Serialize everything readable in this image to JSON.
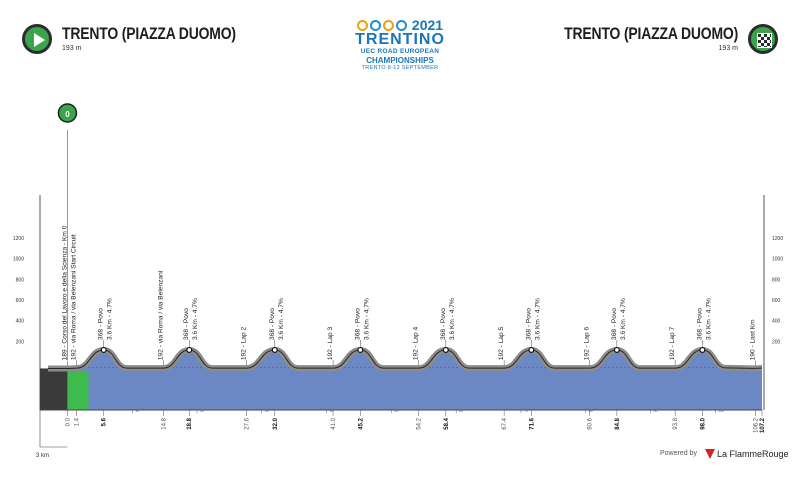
{
  "header": {
    "start_title": "TRENTO (PIAZZA DUOMO)",
    "start_altitude": "193 m",
    "finish_title": "TRENTO (PIAZZA DUOMO)",
    "finish_altitude": "193 m",
    "start_icon": "start-play-icon",
    "finish_icon": "finish-checkered-flag-icon"
  },
  "logo": {
    "year": "2021",
    "name": "TRENTINO",
    "line1": "UEC ROAD EUROPEAN",
    "line2": "CHAMPIONSHIPS",
    "line3": "TRENTO 8-12 SEPTEMBER"
  },
  "footer": {
    "powered_by": "Powered by",
    "brand": "La FlammeRouge",
    "scale_label": "3 km"
  },
  "colors": {
    "profile_fill": "#6b87c4",
    "road_band": "#8c8c8c",
    "start_segment": "#3dbb4f",
    "accent_green": "#3aa54a",
    "logo_blue": "#1a76b8"
  },
  "chart_data": {
    "type": "area",
    "title": "",
    "xlabel": "",
    "ylabel": "",
    "ylim": [
      0,
      1200
    ],
    "xlim": [
      -3,
      107.2
    ],
    "grid": false,
    "y_ticks": [
      200,
      400,
      600,
      800,
      1000,
      1200
    ],
    "x_minor_ticks": [
      10,
      20,
      30,
      40,
      50,
      60,
      70,
      80,
      90,
      100
    ],
    "start_marker": "0",
    "elevation_profile": {
      "x": [
        -3,
        0,
        1.4,
        5.6,
        9.2,
        14.8,
        18.8,
        22.4,
        27.6,
        32.0,
        35.6,
        41.0,
        45.2,
        48.8,
        54.2,
        58.4,
        62.0,
        67.4,
        71.6,
        75.2,
        80.6,
        84.8,
        88.4,
        93.8,
        98.0,
        101.6,
        106.2,
        107.2
      ],
      "y": [
        189,
        189,
        192,
        368,
        192,
        192,
        368,
        192,
        192,
        368,
        192,
        192,
        368,
        192,
        192,
        368,
        192,
        192,
        368,
        192,
        192,
        368,
        192,
        192,
        368,
        195,
        190,
        193
      ]
    },
    "waypoints": [
      {
        "km": 0.0,
        "label": "189 - Corso del Lavoro e della Scienza - Km 0"
      },
      {
        "km": 1.4,
        "label": "192 - via Roma / via Belenzani Start Circuit"
      },
      {
        "km": 5.6,
        "label": "368 - Povo",
        "climb": "3.6 Km - 4.7%"
      },
      {
        "km": 14.8,
        "label": "192 - via Roma / via Belenzani"
      },
      {
        "km": 18.8,
        "label": "368 - Povo",
        "climb": "3.6 Km - 4.7%"
      },
      {
        "km": 27.6,
        "label": "192 - Lap 2"
      },
      {
        "km": 32.0,
        "label": "368 - Povo",
        "climb": "3.6 Km - 4.7%"
      },
      {
        "km": 41.0,
        "label": "192 - Lap 3"
      },
      {
        "km": 45.2,
        "label": "368 - Povo",
        "climb": "3.6 Km - 4.7%"
      },
      {
        "km": 54.2,
        "label": "192 - Lap 4"
      },
      {
        "km": 58.4,
        "label": "368 - Povo",
        "climb": "3.6 Km - 4.7%"
      },
      {
        "km": 67.4,
        "label": "192 - Lap 5"
      },
      {
        "km": 71.6,
        "label": "368 - Povo",
        "climb": "3.6 Km - 4.7%"
      },
      {
        "km": 80.6,
        "label": "192 - Lap 6"
      },
      {
        "km": 84.8,
        "label": "368 - Povo",
        "climb": "3.6 Km - 4.7%"
      },
      {
        "km": 93.8,
        "label": "192 - Lap 7"
      },
      {
        "km": 98.0,
        "label": "368 - Povo",
        "climb": "3.6 Km - 4.7%"
      },
      {
        "km": 106.2,
        "label": "190 - Last Km"
      }
    ],
    "km_labels": [
      {
        "km": 0.0,
        "text": "0.0",
        "bold": false
      },
      {
        "km": 1.4,
        "text": "1.4",
        "bold": false
      },
      {
        "km": 5.6,
        "text": "5.6",
        "bold": true
      },
      {
        "km": 14.8,
        "text": "14.8",
        "bold": false
      },
      {
        "km": 18.8,
        "text": "18.8",
        "bold": true
      },
      {
        "km": 27.6,
        "text": "27.6",
        "bold": false
      },
      {
        "km": 32.0,
        "text": "32.0",
        "bold": true
      },
      {
        "km": 41.0,
        "text": "41.0",
        "bold": false
      },
      {
        "km": 45.2,
        "text": "45.2",
        "bold": true
      },
      {
        "km": 54.2,
        "text": "54.2",
        "bold": false
      },
      {
        "km": 58.4,
        "text": "58.4",
        "bold": true
      },
      {
        "km": 67.4,
        "text": "67.4",
        "bold": false
      },
      {
        "km": 71.6,
        "text": "71.6",
        "bold": true
      },
      {
        "km": 80.6,
        "text": "80.6",
        "bold": false
      },
      {
        "km": 84.8,
        "text": "84.8",
        "bold": true
      },
      {
        "km": 93.8,
        "text": "93.8",
        "bold": false
      },
      {
        "km": 98.0,
        "text": "98.0",
        "bold": true
      },
      {
        "km": 106.2,
        "text": "106.2",
        "bold": false
      },
      {
        "km": 107.2,
        "text": "107.2",
        "bold": true
      }
    ]
  }
}
